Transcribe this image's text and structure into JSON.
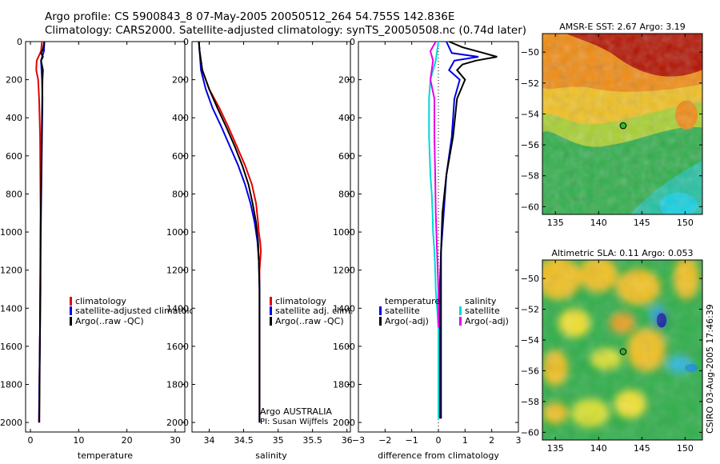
{
  "header": {
    "title_line1": "Argo profile: CS 5900843_8 07-May-2005 20050512_264 54.755S 142.836E",
    "title_line2": "Climatology: CARS2000. Satellite-adjusted climatology: synTS_20050508.nc (0.74d later)"
  },
  "credit": "CSIRO 03-Aug-2005 17:46:39",
  "colors": {
    "climatology": "#e60000",
    "satellite": "#0000e6",
    "argo": "#000000",
    "salinity_diff": "#00d8d8",
    "argo_adj_salinity": "#e600e6",
    "marker": "#2db82d"
  },
  "chart_data": [
    {
      "id": "temperature",
      "type": "line",
      "xlabel": "temperature",
      "ylabel": "",
      "xlim": [
        -1,
        32
      ],
      "ylim": [
        2050,
        0
      ],
      "xticks": [
        0,
        10,
        20,
        30
      ],
      "yticks": [
        0,
        200,
        400,
        600,
        800,
        1000,
        1200,
        1400,
        1600,
        1800,
        2000
      ],
      "legend": {
        "position": "center-right",
        "labels": [
          "climatology",
          "satellite-adjusted climatology",
          "Argo(..raw -QC)"
        ]
      },
      "series": [
        {
          "name": "climatology",
          "color": "#e60000",
          "x": [
            2.4,
            2.2,
            1.3,
            1.2,
            1.6,
            1.8,
            2.0,
            2.05,
            2.1,
            2.1,
            2.1,
            2.05,
            2.0,
            1.95,
            1.9,
            1.85,
            1.8,
            1.75
          ],
          "y": [
            0,
            50,
            100,
            150,
            200,
            300,
            500,
            700,
            900,
            1100,
            1300,
            1400,
            1500,
            1600,
            1700,
            1800,
            1900,
            2000
          ]
        },
        {
          "name": "satellite-adjusted climatology",
          "color": "#0000e6",
          "x": [
            2.9,
            2.8,
            2.2,
            2.3,
            2.4,
            2.5,
            2.4,
            2.3,
            2.2,
            2.1,
            2.05,
            2.0,
            1.95,
            1.9,
            1.85,
            1.8
          ],
          "y": [
            0,
            50,
            100,
            150,
            200,
            300,
            500,
            700,
            900,
            1100,
            1300,
            1500,
            1600,
            1700,
            1800,
            2000
          ]
        },
        {
          "name": "Argo(..raw -QC)",
          "color": "#000000",
          "x": [
            2.9,
            2.6,
            2.2,
            2.6,
            2.2,
            2.6,
            2.5,
            2.4,
            2.3,
            2.2,
            2.1,
            2.05,
            2.0,
            1.95,
            1.9,
            1.85
          ],
          "y": [
            0,
            40,
            60,
            80,
            100,
            150,
            200,
            400,
            600,
            800,
            1000,
            1200,
            1400,
            1600,
            1800,
            2000
          ]
        }
      ]
    },
    {
      "id": "salinity",
      "type": "line",
      "xlabel": "salinity",
      "xlim": [
        33.75,
        36.05
      ],
      "ylim": [
        2050,
        0
      ],
      "xticks": [
        34,
        34.5,
        35,
        35.5,
        36
      ],
      "yticks": [
        0,
        200,
        400,
        600,
        800,
        1000,
        1200,
        1400,
        1600,
        1800,
        2000
      ],
      "legend": {
        "position": "center-right",
        "labels": [
          "climatology",
          "satellite adj. clim.",
          "Argo(..raw -QC)"
        ]
      },
      "annotation": [
        "Argo AUSTRALIA",
        "PI: Susan Wijffels"
      ],
      "series": [
        {
          "name": "climatology",
          "color": "#e60000",
          "x": [
            33.85,
            33.86,
            33.9,
            34.0,
            34.15,
            34.28,
            34.4,
            34.52,
            34.62,
            34.68,
            34.71,
            34.72,
            34.74,
            34.75,
            34.73,
            34.73,
            34.73,
            34.73,
            34.73
          ],
          "y": [
            0,
            50,
            150,
            250,
            350,
            450,
            550,
            650,
            750,
            850,
            950,
            1000,
            1050,
            1100,
            1200,
            1400,
            1600,
            1800,
            2000
          ]
        },
        {
          "name": "satellite adj. clim.",
          "color": "#0000e6",
          "x": [
            33.85,
            33.86,
            33.88,
            33.95,
            34.05,
            34.18,
            34.3,
            34.42,
            34.52,
            34.6,
            34.66,
            34.7,
            34.72,
            34.73,
            34.73,
            34.73,
            34.73
          ],
          "y": [
            0,
            50,
            150,
            250,
            350,
            450,
            550,
            650,
            750,
            850,
            950,
            1050,
            1150,
            1300,
            1500,
            1800,
            2000
          ]
        },
        {
          "name": "Argo(..raw -QC)",
          "color": "#000000",
          "x": [
            33.85,
            33.86,
            33.9,
            34.0,
            34.12,
            34.25,
            34.37,
            34.48,
            34.57,
            34.63,
            34.68,
            34.71,
            34.72,
            34.73,
            34.73,
            34.73
          ],
          "y": [
            0,
            50,
            150,
            250,
            350,
            450,
            550,
            650,
            750,
            850,
            950,
            1050,
            1150,
            1300,
            1600,
            2000
          ]
        }
      ]
    },
    {
      "id": "difference",
      "type": "line",
      "xlabel": "difference from climatology",
      "xlim": [
        -3,
        3
      ],
      "ylim": [
        2050,
        0
      ],
      "xticks": [
        -3,
        -2,
        -1,
        0,
        1,
        2,
        3
      ],
      "yticks": [
        0,
        200,
        400,
        600,
        800,
        1000,
        1200,
        1400,
        1600,
        1800,
        2000
      ],
      "legend": {
        "position": "center",
        "labels_left": [
          "temperature",
          "satellite",
          "Argo(-adj)"
        ],
        "labels_right": [
          "salinity",
          "satellite",
          "Argo(-adj)"
        ]
      },
      "series": [
        {
          "name": "temperature satellite",
          "color": "#0000e6",
          "x": [
            0.3,
            0.5,
            1.5,
            0.6,
            0.4,
            0.8,
            0.6,
            0.5,
            0.3,
            0.2,
            0.1,
            0.05,
            0.05,
            0.05,
            0.05,
            0.05
          ],
          "y": [
            0,
            60,
            80,
            100,
            150,
            200,
            300,
            500,
            700,
            900,
            1100,
            1300,
            1500,
            1700,
            1900,
            1980
          ]
        },
        {
          "name": "temperature Argo(-adj)",
          "color": "#000000",
          "x": [
            0.4,
            0.9,
            1.7,
            2.2,
            1.4,
            0.9,
            0.7,
            1.0,
            0.7,
            0.55,
            0.3,
            0.15,
            0.1,
            0.1,
            0.1,
            0.1
          ],
          "y": [
            0,
            30,
            60,
            80,
            100,
            120,
            150,
            200,
            300,
            500,
            700,
            900,
            1100,
            1400,
            1700,
            1980
          ]
        },
        {
          "name": "salinity satellite",
          "color": "#00d8d8",
          "x": [
            0.0,
            -0.1,
            -0.3,
            -0.35,
            -0.35,
            -0.3,
            -0.25,
            -0.22,
            -0.2,
            -0.15,
            -0.12,
            -0.1,
            -0.05,
            0.0,
            0.0,
            0.0
          ],
          "y": [
            0,
            100,
            200,
            300,
            500,
            700,
            800,
            900,
            1000,
            1100,
            1200,
            1300,
            1400,
            1500,
            1700,
            1980
          ]
        },
        {
          "name": "salinity Argo(-adj)",
          "color": "#e600e6",
          "x": [
            -0.1,
            -0.3,
            -0.2,
            -0.3,
            -0.15,
            -0.15,
            -0.12,
            -0.1,
            -0.05,
            0.0,
            0.0
          ],
          "y": [
            0,
            50,
            100,
            200,
            300,
            500,
            700,
            900,
            1100,
            1300,
            1500
          ]
        }
      ]
    },
    {
      "id": "sst-map",
      "type": "heatmap",
      "title": "AMSR-E SST: 2.67 Argo: 3.19",
      "xlim": [
        133.5,
        152
      ],
      "ylim": [
        -60.5,
        -48.8
      ],
      "xticks": [
        135,
        140,
        145,
        150
      ],
      "yticks": [
        -60,
        -58,
        -56,
        -54,
        -52,
        -50
      ],
      "marker": {
        "lon": 142.836,
        "lat": -54.755
      }
    },
    {
      "id": "sla-map",
      "type": "heatmap",
      "title": "Altimetric SLA: 0.11 Argo: 0.053",
      "xlim": [
        133.5,
        152
      ],
      "ylim": [
        -60.5,
        -48.8
      ],
      "xticks": [
        135,
        140,
        145,
        150
      ],
      "yticks": [
        -60,
        -58,
        -56,
        -54,
        -52,
        -50
      ],
      "marker": {
        "lon": 142.836,
        "lat": -54.755
      }
    }
  ]
}
